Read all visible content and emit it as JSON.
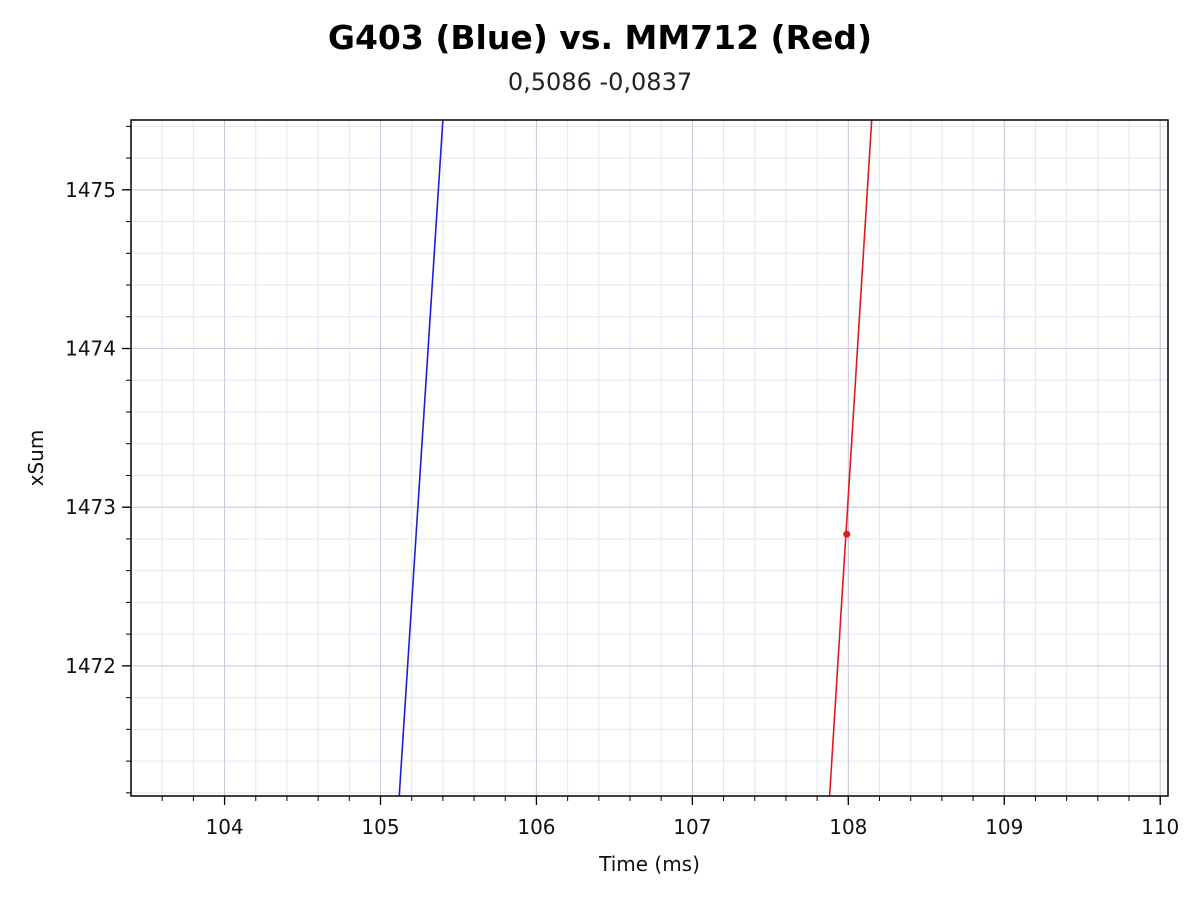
{
  "chart_data": {
    "type": "line",
    "title": "G403 (Blue) vs. MM712 (Red)",
    "subtitle": "0,5086 -0,0837",
    "xlabel": "Time (ms)",
    "ylabel": "xSum",
    "xlim": [
      103.4,
      110.05
    ],
    "ylim": [
      1471.18,
      1475.44
    ],
    "x_ticks": [
      104,
      105,
      106,
      107,
      108,
      109,
      110
    ],
    "y_ticks": [
      1472,
      1473,
      1474,
      1475
    ],
    "x_minor_step": 0.2,
    "y_minor_step": 0.2,
    "grid": true,
    "series": [
      {
        "color": "#1f1fd6",
        "points": [
          [
            105.12,
            1471.18
          ],
          [
            105.4,
            1475.44
          ]
        ]
      },
      {
        "color": "#e01b1b",
        "points": [
          [
            107.88,
            1471.18
          ],
          [
            108.15,
            1475.44
          ]
        ]
      }
    ],
    "markers": [
      {
        "color": "#e01b1b",
        "x": 107.99,
        "y": 1472.83
      }
    ]
  }
}
